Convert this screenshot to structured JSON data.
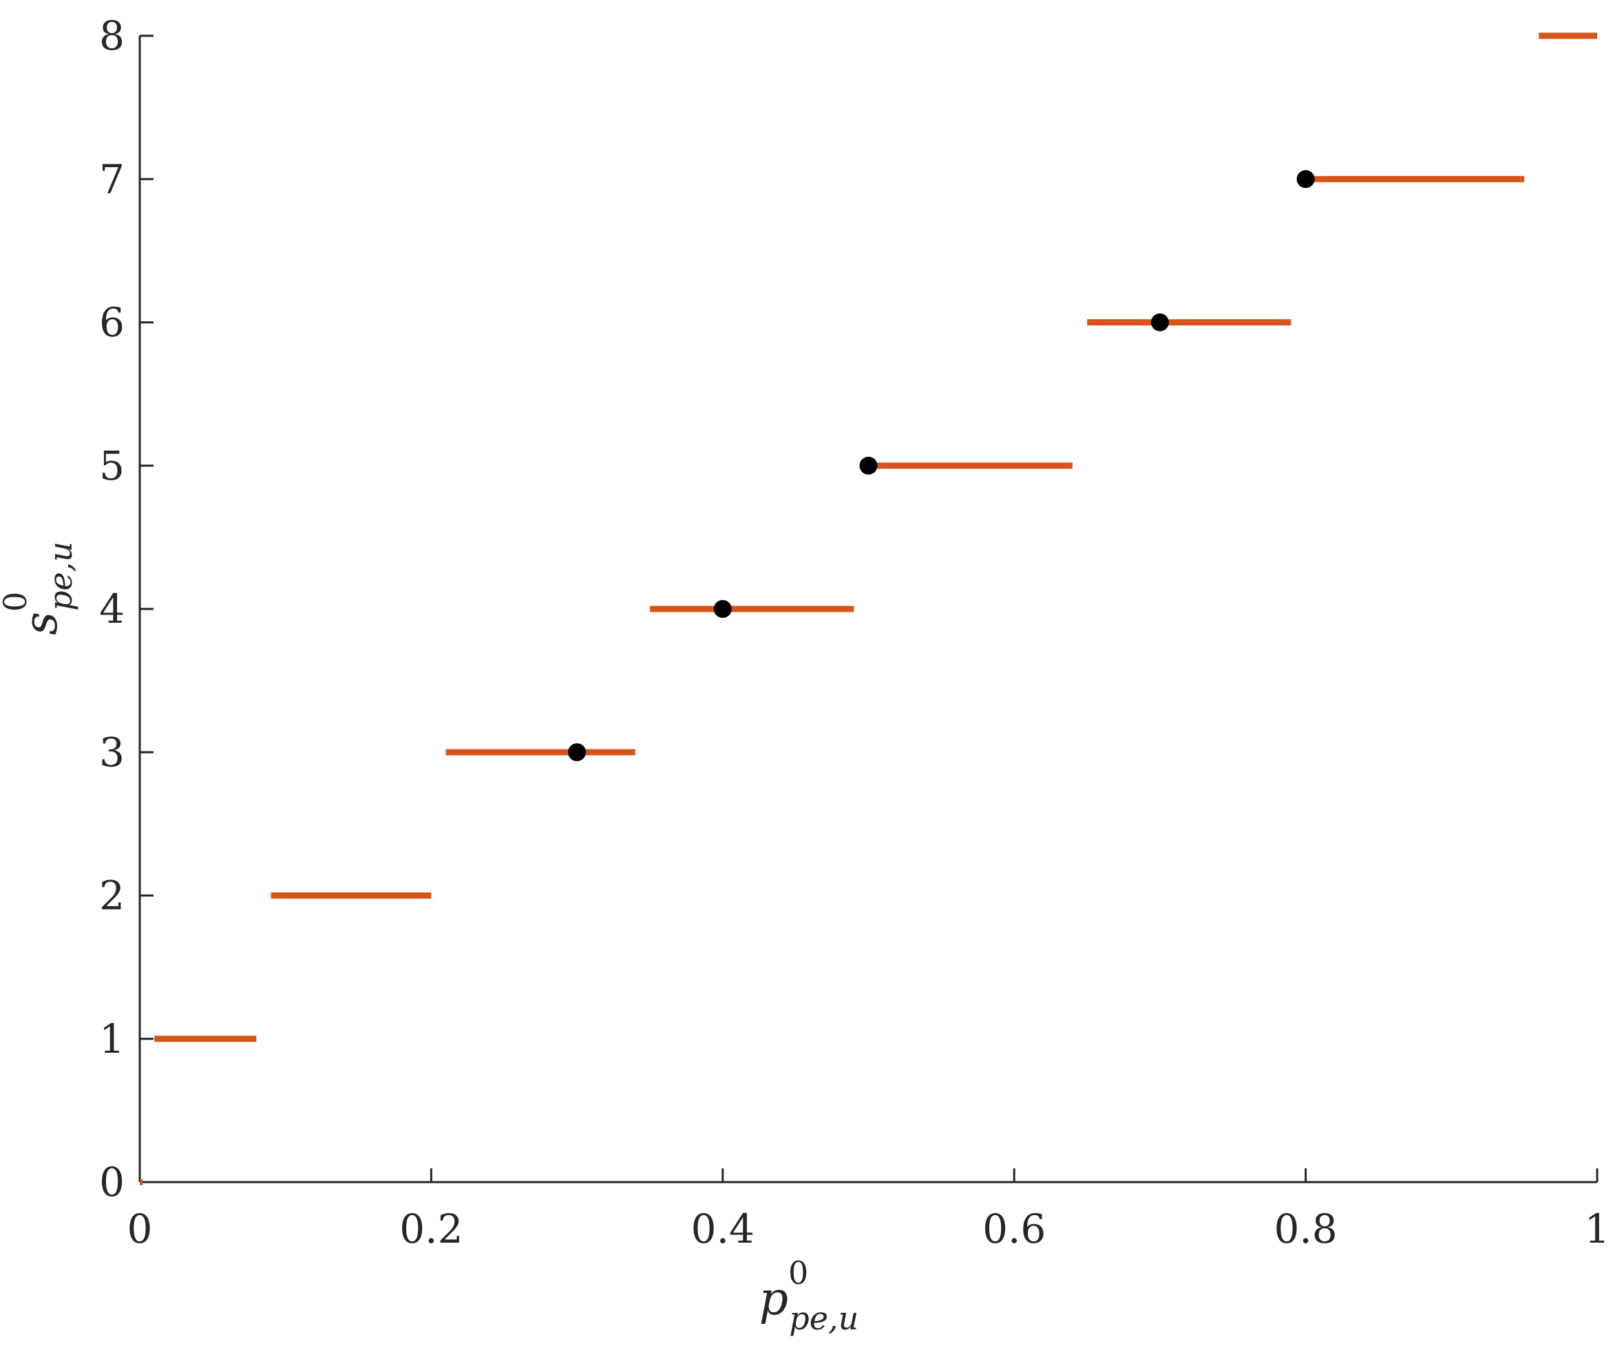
{
  "chart_data": {
    "type": "scatter",
    "xlabel": {
      "base": "p",
      "sup": "0",
      "sub": "pe,",
      "sub_italic": "u"
    },
    "ylabel": {
      "base": "s",
      "sup": "0",
      "sub": "pe,",
      "sub_italic": "u"
    },
    "xlim": [
      0,
      1
    ],
    "ylim": [
      0,
      8
    ],
    "x_ticks": [
      0,
      0.2,
      0.4,
      0.6,
      0.8,
      1
    ],
    "x_tick_labels": [
      "0",
      "0.2",
      "0.4",
      "0.6",
      "0.8",
      "1"
    ],
    "y_ticks": [
      0,
      1,
      2,
      3,
      4,
      5,
      6,
      7,
      8
    ],
    "y_tick_labels": [
      "0",
      "1",
      "2",
      "3",
      "4",
      "5",
      "6",
      "7",
      "8"
    ],
    "grid": false,
    "series": [
      {
        "style": "horizontal-segments",
        "color": "#D95319",
        "segments": [
          {
            "x0": 0,
            "x1": 0.002,
            "y": 0
          },
          {
            "x0": 0.01,
            "x1": 0.08,
            "y": 1
          },
          {
            "x0": 0.09,
            "x1": 0.2,
            "y": 2
          },
          {
            "x0": 0.21,
            "x1": 0.34,
            "y": 3
          },
          {
            "x0": 0.35,
            "x1": 0.49,
            "y": 4
          },
          {
            "x0": 0.5,
            "x1": 0.64,
            "y": 5
          },
          {
            "x0": 0.65,
            "x1": 0.79,
            "y": 6
          },
          {
            "x0": 0.8,
            "x1": 0.95,
            "y": 7
          },
          {
            "x0": 0.96,
            "x1": 1.0,
            "y": 8
          }
        ]
      },
      {
        "style": "points",
        "color": "#000000",
        "points": [
          {
            "x": 0.3,
            "y": 3
          },
          {
            "x": 0.4,
            "y": 4
          },
          {
            "x": 0.5,
            "y": 5
          },
          {
            "x": 0.7,
            "y": 6
          },
          {
            "x": 0.8,
            "y": 7
          }
        ]
      }
    ]
  }
}
